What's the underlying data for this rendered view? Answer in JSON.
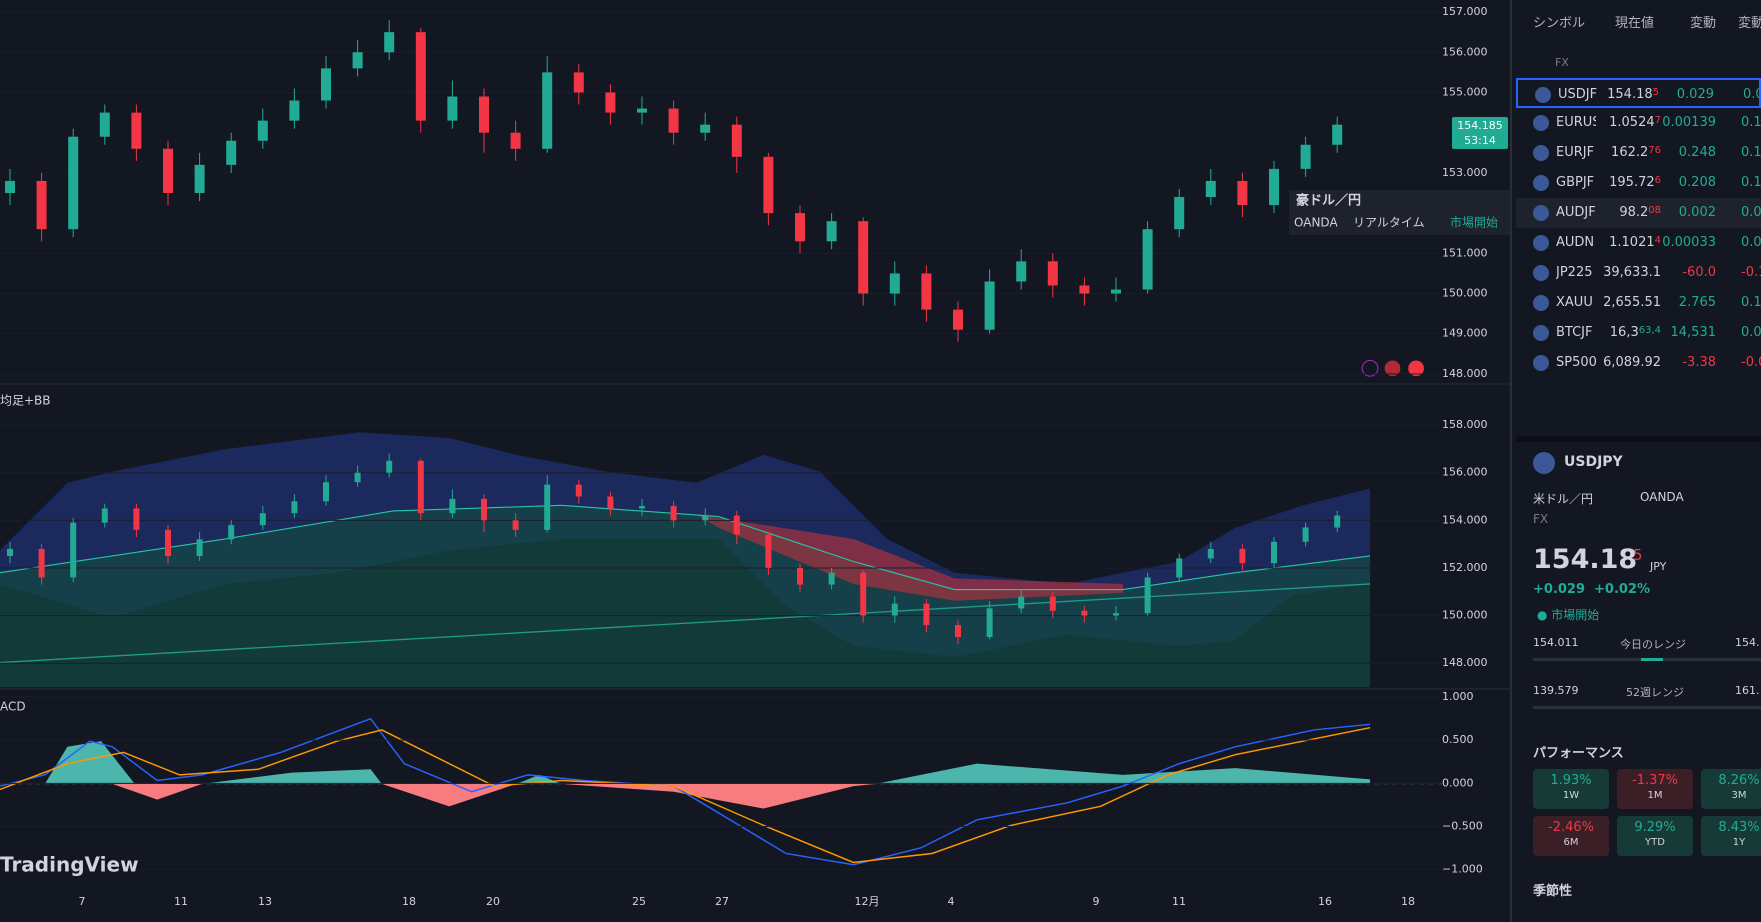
{
  "chart_data": {
    "type": "candlestick",
    "open": [
      152.5,
      152.8,
      151.6,
      153.9,
      154.5,
      153.6,
      152.5,
      153.2,
      153.8,
      154.3,
      154.8,
      155.6,
      156.0,
      156.5,
      154.3,
      154.9,
      154.0,
      153.6,
      155.5,
      155.0,
      154.5,
      154.6,
      154.0,
      154.2,
      153.4,
      152.0,
      151.3,
      151.8,
      150.0,
      150.5,
      149.6,
      149.1,
      150.3,
      150.8,
      150.2,
      150.0,
      150.1,
      151.6,
      152.4,
      152.8,
      152.2,
      153.1,
      153.7
    ],
    "high": [
      153.1,
      153.0,
      154.1,
      154.7,
      154.7,
      153.8,
      153.5,
      154.0,
      154.6,
      155.1,
      155.9,
      156.3,
      156.8,
      156.6,
      155.3,
      155.1,
      154.3,
      155.9,
      155.7,
      155.2,
      154.9,
      154.8,
      154.5,
      154.4,
      153.5,
      152.2,
      152.0,
      151.9,
      150.8,
      150.7,
      149.8,
      150.6,
      151.1,
      151.0,
      150.4,
      150.4,
      151.8,
      152.6,
      153.1,
      153.0,
      153.3,
      153.9,
      154.4
    ],
    "low": [
      152.2,
      151.3,
      151.4,
      153.7,
      153.3,
      152.2,
      152.3,
      153.0,
      153.6,
      154.1,
      154.6,
      155.4,
      155.8,
      154.0,
      154.1,
      153.5,
      153.3,
      153.5,
      154.7,
      154.2,
      154.2,
      153.7,
      153.8,
      153.0,
      151.7,
      151.0,
      151.1,
      149.7,
      149.7,
      149.3,
      148.8,
      149.0,
      150.1,
      149.9,
      149.7,
      149.8,
      150.0,
      151.4,
      152.2,
      151.9,
      152.0,
      152.9,
      153.5
    ],
    "close": [
      152.8,
      151.6,
      153.9,
      154.5,
      153.6,
      152.5,
      153.2,
      153.8,
      154.3,
      154.8,
      155.6,
      156.0,
      156.5,
      154.3,
      154.9,
      154.0,
      153.6,
      155.5,
      155.0,
      154.5,
      154.6,
      154.0,
      154.2,
      153.4,
      152.0,
      151.3,
      151.8,
      150.0,
      150.5,
      149.6,
      149.1,
      150.3,
      150.8,
      150.2,
      150.0,
      150.1,
      151.6,
      152.4,
      152.8,
      152.2,
      153.1,
      153.7,
      154.2
    ],
    "color_up": "#22ab94",
    "color_down": "#f23645",
    "ylim": [
      147.8,
      157.3
    ],
    "yticks": [
      {
        "value": 157,
        "label": "157.000"
      },
      {
        "value": 156,
        "label": "156.000"
      },
      {
        "value": 155,
        "label": "155.000"
      },
      {
        "value": 153,
        "label": "153.000"
      },
      {
        "value": 151,
        "label": "151.000"
      },
      {
        "value": 150,
        "label": "150.000"
      },
      {
        "value": 149,
        "label": "149.000"
      },
      {
        "value": 148,
        "label": "148.000"
      }
    ]
  },
  "indicator_pane": {
    "label": "均足+BB",
    "ylim": [
      147,
      159.6
    ],
    "yticks": [
      {
        "value": 158,
        "label": "158.000"
      },
      {
        "value": 156,
        "label": "156.000"
      },
      {
        "value": 154,
        "label": "154.000"
      },
      {
        "value": 152,
        "label": "152.000"
      },
      {
        "value": 150,
        "label": "150.000"
      },
      {
        "value": 148,
        "label": "148.000"
      }
    ]
  },
  "macd_pane": {
    "label": "ACD",
    "ylim": [
      -1.2,
      1.08
    ],
    "yticks": [
      {
        "value": 1,
        "label": "1.000"
      },
      {
        "value": 0.5,
        "label": "0.500"
      },
      {
        "value": 0,
        "label": "0.000"
      },
      {
        "value": -0.5,
        "label": "−0.500"
      },
      {
        "value": -1,
        "label": "−1.000"
      }
    ]
  },
  "x_axis": {
    "labels": [
      "7",
      "11",
      "13",
      "18",
      "20",
      "25",
      "27",
      "12月",
      "4",
      "9",
      "11",
      "16",
      "18"
    ]
  },
  "price_tag": {
    "price": "154.185",
    "countdown": "53:14"
  },
  "tooltip": {
    "title": "豪ドル／円",
    "broker": "OANDA",
    "feed": "リアルタイム",
    "status": "市場開始"
  },
  "watermark": "TradingView",
  "watchlist": {
    "headers": [
      "シンボル",
      "現在値",
      "変動",
      "変動"
    ],
    "section": "FX",
    "rows": [
      {
        "symbol": "USDJF",
        "price": "154.18",
        "pip": "5",
        "change": "0.029",
        "percent": "0.0",
        "color": "#22ab94",
        "pip_color": "#f23645"
      },
      {
        "symbol": "EURUS",
        "price": "1.0524",
        "pip": "7",
        "change": "0.00139",
        "percent": "0.1",
        "color": "#22ab94",
        "pip_color": "#f23645"
      },
      {
        "symbol": "EURJF",
        "price": "162.2",
        "pip": "76",
        "change": "0.248",
        "percent": "0.1",
        "color": "#22ab94",
        "pip_color": "#f23645"
      },
      {
        "symbol": "GBPJF",
        "price": "195.72",
        "pip": "6",
        "change": "0.208",
        "percent": "0.1",
        "color": "#22ab94",
        "pip_color": "#f23645"
      },
      {
        "symbol": "AUDJF",
        "price": "98.2",
        "pip": "08",
        "change": "0.002",
        "percent": "0.0",
        "color": "#22ab94",
        "pip_color": "#f23645"
      },
      {
        "symbol": "AUDN",
        "price": "1.1021",
        "pip": "4",
        "change": "0.00033",
        "percent": "0.0",
        "color": "#22ab94",
        "pip_color": "#f23645"
      },
      {
        "symbol": "JP225",
        "price": "39,633.1",
        "pip": "",
        "change": "-60.0",
        "percent": "-0.1",
        "color": "#f23645",
        "pip_color": "#d1d4dc"
      },
      {
        "symbol": "XAUU",
        "price": "2,655.51",
        "pip": "",
        "change": "2.765",
        "percent": "0.1",
        "color": "#22ab94",
        "pip_color": "#d1d4dc"
      },
      {
        "symbol": "BTCJF",
        "price": "16,3",
        "pip": "63,4",
        "change": "14,531",
        "percent": "0.0",
        "color": "#22ab94",
        "pip_color": "#22ab94"
      },
      {
        "symbol": "SP500",
        "price": "6,089.92",
        "pip": "",
        "change": "-3.38",
        "percent": "-0.0",
        "color": "#f23645",
        "pip_color": "#d1d4dc"
      }
    ]
  },
  "detail": {
    "symbol": "USDJPY",
    "name": "米ドル／円",
    "broker": "OANDA",
    "market": "FX",
    "price": "154.18",
    "pip": "5",
    "currency": "JPY",
    "change": "+0.029",
    "change_pct": "+0.02%",
    "status": "市場開始",
    "day_low": "154.011",
    "day_label": "今日のレンジ",
    "day_high": "154.",
    "year_low": "139.579",
    "year_label": "52週レンジ",
    "year_high": "161.",
    "performance_title": "パフォーマンス",
    "performance": [
      {
        "value": "1.93%",
        "period": "1W",
        "color": "#22ab94"
      },
      {
        "value": "-1.37%",
        "period": "1M",
        "color": "#f23645"
      },
      {
        "value": "8.26%",
        "period": "3M",
        "color": "#22ab94"
      },
      {
        "value": "-2.46%",
        "period": "6M",
        "color": "#f23645"
      },
      {
        "value": "9.29%",
        "period": "YTD",
        "color": "#22ab94"
      },
      {
        "value": "8.43%",
        "period": "1Y",
        "color": "#22ab94"
      }
    ],
    "seasonality": "季節性"
  }
}
